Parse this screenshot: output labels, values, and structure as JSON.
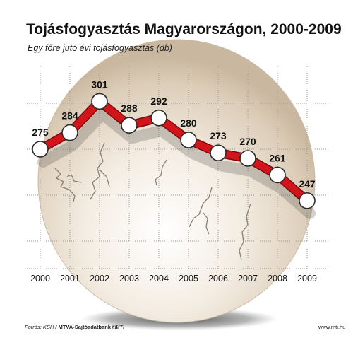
{
  "chart_data": {
    "type": "line",
    "title": "Tojásfogyasztás Magyarországon, 2000-2009",
    "subtitle": "Egy főre jutó évi tojásfogyasztás (db)",
    "categories": [
      "2000",
      "2001",
      "2002",
      "2003",
      "2004",
      "2005",
      "2006",
      "2007",
      "2008",
      "2009"
    ],
    "values": [
      275,
      284,
      301,
      288,
      292,
      280,
      273,
      270,
      261,
      247
    ],
    "ylim": [
      210,
      320
    ],
    "grid": true,
    "colors": {
      "line": "#d4141b",
      "marker_fill": "#ffffff",
      "marker_stroke": "#2a2a2a",
      "egg": "#e9dccb"
    }
  },
  "footer": {
    "source_prefix": "Forrás: KSH / ",
    "source_bold": "MTVA-Sajtóadatbank",
    "source_suffix": " / MTI",
    "logo": "mti",
    "website": "www.mti.hu"
  }
}
